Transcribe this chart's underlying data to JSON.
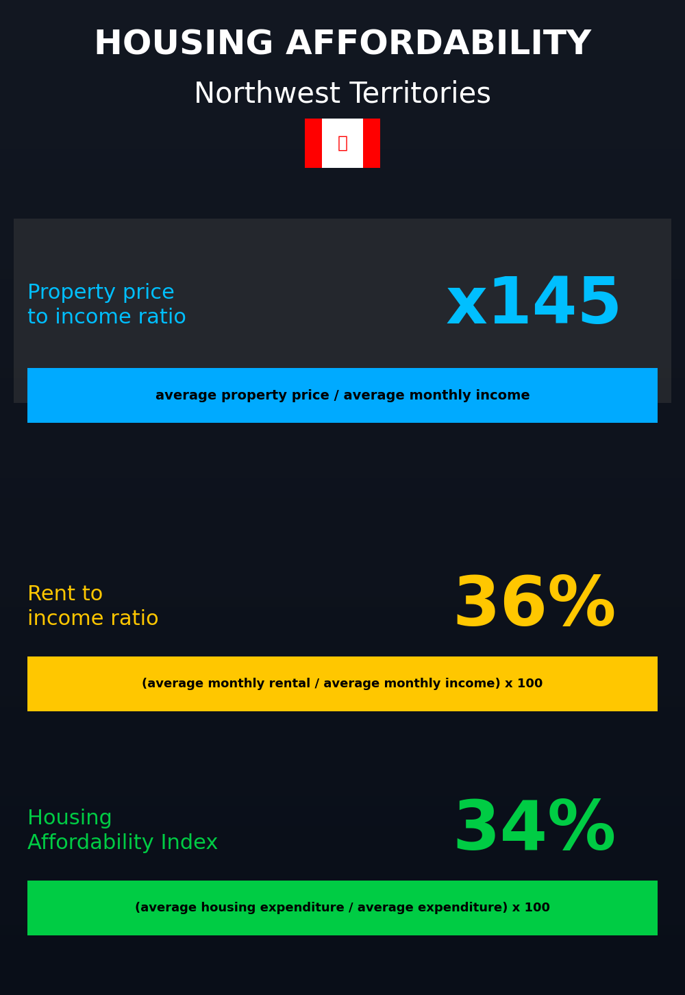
{
  "title_line1": "HOUSING AFFORDABILITY",
  "title_line2": "Northwest Territories",
  "bg_color": "#0a0f1a",
  "section1_label": "Property price\nto income ratio",
  "section1_value": "x145",
  "section1_label_color": "#00bfff",
  "section1_value_color": "#00bfff",
  "section1_banner_text": "average property price / average monthly income",
  "section1_banner_bg": "#00aaff",
  "section1_banner_text_color": "#000000",
  "section1_overlay_color": "#555555",
  "section1_overlay_alpha": 0.35,
  "section2_label": "Rent to\nincome ratio",
  "section2_value": "36%",
  "section2_label_color": "#ffc700",
  "section2_value_color": "#ffc700",
  "section2_banner_text": "(average monthly rental / average monthly income) x 100",
  "section2_banner_bg": "#ffc700",
  "section2_banner_text_color": "#000000",
  "section3_label": "Housing\nAffordability Index",
  "section3_value": "34%",
  "section3_label_color": "#00cc44",
  "section3_value_color": "#00cc44",
  "section3_banner_text": "(average housing expenditure / average expenditure) x 100",
  "section3_banner_bg": "#00cc44",
  "section3_banner_text_color": "#000000",
  "title_color": "#ffffff",
  "subtitle_color": "#ffffff"
}
